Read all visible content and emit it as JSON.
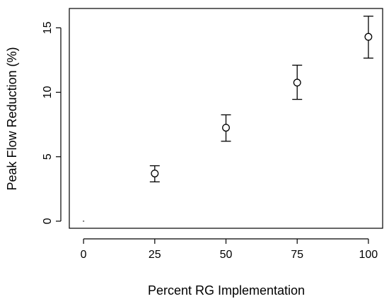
{
  "chart_data": {
    "type": "scatter",
    "title": "",
    "xlabel": "Percent RG Implementation",
    "ylabel": "Peak Flow Reduction (%)",
    "xlim": [
      -5,
      105
    ],
    "ylim": [
      -0.55,
      16.5
    ],
    "x_ticks": [
      0,
      25,
      50,
      75,
      100
    ],
    "x_tick_labels": [
      "0",
      "25",
      "50",
      "75",
      "100"
    ],
    "y_ticks": [
      0,
      5,
      10,
      15
    ],
    "y_tick_labels": [
      "0",
      "5",
      "10",
      "15"
    ],
    "grid": false,
    "legend": "none",
    "points": [
      {
        "x": 0,
        "y": 0,
        "lower": 0,
        "upper": 0
      },
      {
        "x": 25,
        "y": 3.7,
        "lower": 3.05,
        "upper": 4.3
      },
      {
        "x": 50,
        "y": 7.25,
        "lower": 6.2,
        "upper": 8.25
      },
      {
        "x": 75,
        "y": 10.75,
        "lower": 9.45,
        "upper": 12.1
      },
      {
        "x": 100,
        "y": 14.3,
        "lower": 12.65,
        "upper": 15.9
      }
    ],
    "marker": "open-circle",
    "error_bars": true,
    "colors": {
      "marker": "#000000",
      "axis": "#000000"
    }
  }
}
